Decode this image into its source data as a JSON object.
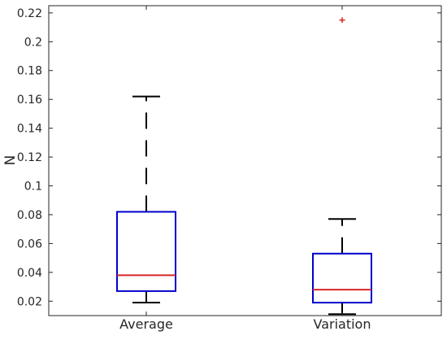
{
  "chart_data": {
    "type": "box",
    "title": "",
    "xlabel": "",
    "ylabel": "N",
    "ylim": [
      0.01,
      0.225
    ],
    "yticks": [
      0.02,
      0.04,
      0.06,
      0.08,
      0.1,
      0.12,
      0.14,
      0.16,
      0.18,
      0.2,
      0.22
    ],
    "ytick_labels": [
      "0.02",
      "0.04",
      "0.06",
      "0.08",
      "0.1",
      "0.12",
      "0.14",
      "0.16",
      "0.18",
      "0.2",
      "0.22"
    ],
    "categories": [
      "Average",
      "Variation"
    ],
    "boxes": [
      {
        "category": "Average",
        "whisker_low": 0.019,
        "q1": 0.027,
        "median": 0.038,
        "q3": 0.082,
        "whisker_high": 0.162,
        "outliers": []
      },
      {
        "category": "Variation",
        "whisker_low": 0.011,
        "q1": 0.019,
        "median": 0.028,
        "q3": 0.053,
        "whisker_high": 0.077,
        "outliers": [
          0.215
        ]
      }
    ],
    "grid": false,
    "colors": {
      "box": "#0000cc",
      "median": "#d62728",
      "whisker": "#000000",
      "outlier": "#d62728",
      "axis": "#262626"
    }
  }
}
